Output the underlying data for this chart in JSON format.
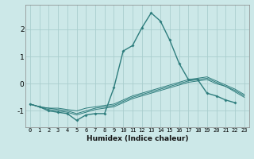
{
  "xlabel": "Humidex (Indice chaleur)",
  "x": [
    0,
    1,
    2,
    3,
    4,
    5,
    6,
    7,
    8,
    9,
    10,
    11,
    12,
    13,
    14,
    15,
    16,
    17,
    18,
    19,
    20,
    21,
    22,
    23
  ],
  "line1": [
    -0.75,
    -0.85,
    -1.0,
    -1.05,
    -1.1,
    -1.35,
    -1.15,
    -1.1,
    -1.1,
    -0.15,
    1.2,
    1.4,
    2.05,
    2.6,
    2.3,
    1.6,
    0.75,
    0.15,
    0.15,
    -0.35,
    -0.45,
    -0.6,
    -0.7,
    null
  ],
  "line2": [
    -0.75,
    -0.85,
    -0.95,
    -1.0,
    -1.05,
    -1.15,
    -1.05,
    -0.95,
    -0.9,
    -0.85,
    -0.7,
    -0.55,
    -0.45,
    -0.35,
    -0.25,
    -0.15,
    -0.05,
    0.05,
    0.1,
    0.15,
    0.0,
    -0.1,
    -0.3,
    -0.5
  ],
  "line3": [
    -0.75,
    -0.85,
    -0.9,
    -0.95,
    -1.0,
    -1.1,
    -1.0,
    -0.9,
    -0.85,
    -0.8,
    -0.65,
    -0.5,
    -0.4,
    -0.3,
    -0.2,
    -0.1,
    0.0,
    0.1,
    0.15,
    0.2,
    0.05,
    -0.1,
    -0.25,
    -0.45
  ],
  "line4": [
    -0.75,
    -0.85,
    -0.9,
    -0.9,
    -0.95,
    -1.0,
    -0.9,
    -0.85,
    -0.8,
    -0.75,
    -0.6,
    -0.45,
    -0.35,
    -0.25,
    -0.15,
    -0.05,
    0.05,
    0.15,
    0.2,
    0.25,
    0.1,
    -0.05,
    -0.2,
    -0.4
  ],
  "line_color": "#2e7d7d",
  "bg_color": "#cce8e8",
  "grid_color": "#aacece",
  "ylim": [
    -1.6,
    2.9
  ],
  "yticks": [
    -1,
    0,
    1,
    2
  ],
  "xlim": [
    -0.5,
    23.5
  ]
}
